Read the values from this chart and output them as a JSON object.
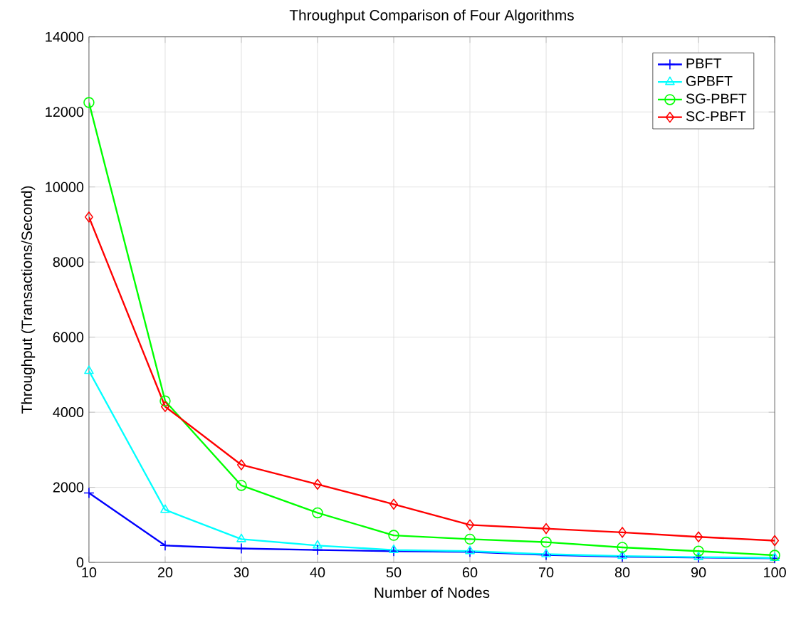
{
  "chart_data": {
    "type": "line",
    "title": "Throughput Comparison of Four Algorithms",
    "xlabel": "Number of Nodes",
    "ylabel": "Throughput (Transactions/Second)",
    "x": [
      10,
      20,
      30,
      40,
      50,
      60,
      70,
      80,
      90,
      100
    ],
    "series": [
      {
        "name": "PBFT",
        "color": "#0000ff",
        "marker": "cross",
        "values": [
          1850,
          450,
          370,
          330,
          300,
          280,
          200,
          150,
          130,
          110
        ]
      },
      {
        "name": "GPBFT",
        "color": "#00ffff",
        "marker": "triangle",
        "values": [
          5100,
          1400,
          620,
          450,
          330,
          300,
          220,
          170,
          140,
          120
        ]
      },
      {
        "name": "SG-PBFT",
        "color": "#00ff00",
        "marker": "circle",
        "values": [
          12250,
          4300,
          2050,
          1320,
          720,
          620,
          540,
          400,
          300,
          190
        ]
      },
      {
        "name": "SC-PBFT",
        "color": "#ff0000",
        "marker": "diamond",
        "values": [
          9200,
          4150,
          2600,
          2080,
          1550,
          1000,
          900,
          800,
          680,
          580
        ]
      }
    ],
    "xlim": [
      10,
      100
    ],
    "ylim": [
      0,
      14000
    ],
    "xticks": [
      10,
      20,
      30,
      40,
      50,
      60,
      70,
      80,
      90,
      100
    ],
    "yticks": [
      0,
      2000,
      4000,
      6000,
      8000,
      10000,
      12000,
      14000
    ],
    "grid": true,
    "legend": "top right"
  }
}
